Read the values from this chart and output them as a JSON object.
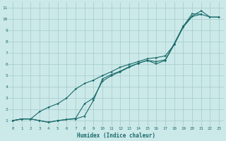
{
  "xlabel": "Humidex (Indice chaleur)",
  "bg_color": "#cce9e9",
  "grid_color": "#aacece",
  "line_color": "#1a6b6b",
  "xlim": [
    -0.5,
    23.5
  ],
  "ylim": [
    0.5,
    11.5
  ],
  "xticks": [
    0,
    1,
    2,
    3,
    4,
    5,
    6,
    7,
    8,
    9,
    10,
    11,
    12,
    13,
    14,
    15,
    16,
    17,
    18,
    19,
    20,
    21,
    22,
    23
  ],
  "yticks": [
    1,
    2,
    3,
    4,
    5,
    6,
    7,
    8,
    9,
    10,
    11
  ],
  "line1_x": [
    0,
    1,
    2,
    3,
    4,
    5,
    6,
    7,
    8,
    9,
    10,
    11,
    12,
    13,
    14,
    15,
    16,
    17,
    18,
    19,
    20,
    21,
    22,
    23
  ],
  "line1_y": [
    1,
    1.15,
    1.15,
    1.0,
    0.85,
    1.0,
    1.1,
    1.15,
    1.4,
    2.8,
    4.7,
    5.1,
    5.4,
    5.8,
    6.1,
    6.35,
    6.25,
    6.4,
    7.85,
    9.4,
    10.3,
    10.75,
    10.2,
    10.2
  ],
  "line2_x": [
    0,
    1,
    2,
    3,
    4,
    5,
    6,
    7,
    8,
    9,
    10,
    11,
    12,
    13,
    14,
    15,
    16,
    17,
    18,
    19,
    20,
    21,
    22,
    23
  ],
  "line2_y": [
    1,
    1.15,
    1.15,
    1.0,
    0.85,
    1.0,
    1.1,
    1.2,
    2.5,
    3.0,
    4.5,
    5.0,
    5.35,
    5.75,
    6.1,
    6.35,
    6.05,
    6.35,
    7.75,
    9.3,
    10.25,
    10.45,
    10.2,
    10.2
  ],
  "line3_x": [
    0,
    1,
    2,
    3,
    4,
    5,
    6,
    7,
    8,
    9,
    10,
    11,
    12,
    13,
    14,
    15,
    16,
    17,
    18,
    19,
    20,
    21
  ],
  "line3_y": [
    1,
    1.15,
    1.15,
    1.8,
    2.2,
    2.5,
    3.0,
    3.8,
    4.3,
    4.6,
    5.0,
    5.35,
    5.75,
    6.0,
    6.25,
    6.5,
    6.6,
    6.75,
    7.75,
    9.35,
    10.5,
    10.45
  ]
}
